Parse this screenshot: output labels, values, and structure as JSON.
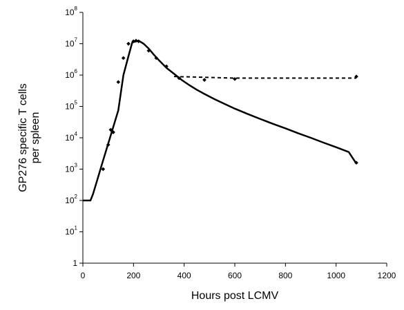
{
  "chart_data": {
    "type": "line",
    "title": "",
    "xlabel": "Hours post LCMV",
    "ylabel_lines": [
      "GP276 specific T cells",
      "per spleen"
    ],
    "xlim": [
      0,
      1200
    ],
    "ylim": [
      1,
      100000000
    ],
    "yscale": "log",
    "grid": false,
    "legend": "none",
    "x_ticks": [
      0,
      200,
      400,
      600,
      800,
      1000,
      1200
    ],
    "y_ticks": [
      {
        "base": "1",
        "exp": "",
        "value": 1
      },
      {
        "base": "10",
        "exp": "1",
        "value": 10
      },
      {
        "base": "10",
        "exp": "2",
        "value": 100
      },
      {
        "base": "10",
        "exp": "3",
        "value": 1000
      },
      {
        "base": "10",
        "exp": "4",
        "value": 10000
      },
      {
        "base": "10",
        "exp": "5",
        "value": 100000
      },
      {
        "base": "10",
        "exp": "6",
        "value": 1000000
      },
      {
        "base": "10",
        "exp": "7",
        "value": 10000000
      },
      {
        "base": "10",
        "exp": "8",
        "value": 100000000
      }
    ],
    "series": [
      {
        "style": "solid",
        "color": "#000000",
        "x": [
          0,
          30,
          40,
          60,
          80,
          100,
          120,
          140,
          160,
          180,
          195,
          210,
          220,
          240,
          260,
          280,
          300,
          330,
          360,
          390,
          420,
          450,
          480,
          520,
          560,
          600,
          650,
          700,
          750,
          800,
          850,
          900,
          950,
          1000,
          1050,
          1080
        ],
        "y": [
          100,
          100,
          160,
          550,
          1900,
          6500,
          22000,
          75000,
          1000000,
          4000000,
          11000000,
          12000000,
          12500000,
          10000000,
          7000000,
          4500000,
          3000000,
          1700000,
          1100000,
          700000,
          480000,
          340000,
          250000,
          170000,
          120000,
          85000,
          58000,
          40000,
          28000,
          20000,
          14000,
          10000,
          7000,
          5000,
          3500,
          1500
        ]
      },
      {
        "style": "dashed",
        "color": "#000000",
        "x": [
          360,
          480,
          600,
          800,
          1000,
          1080
        ],
        "y": [
          900000,
          850000,
          800000,
          800000,
          800000,
          800000
        ]
      }
    ],
    "points": {
      "x": [
        80,
        100,
        110,
        120,
        140,
        160,
        180,
        200,
        210,
        220,
        260,
        290,
        330,
        380,
        480,
        600,
        1080,
        1080
      ],
      "y": [
        1000,
        6000,
        18000,
        15000,
        600000,
        3500000,
        10000000,
        12000000,
        12500000,
        12000000,
        6000000,
        3500000,
        1900000,
        800000,
        700000,
        750000,
        900000,
        1600
      ]
    }
  }
}
